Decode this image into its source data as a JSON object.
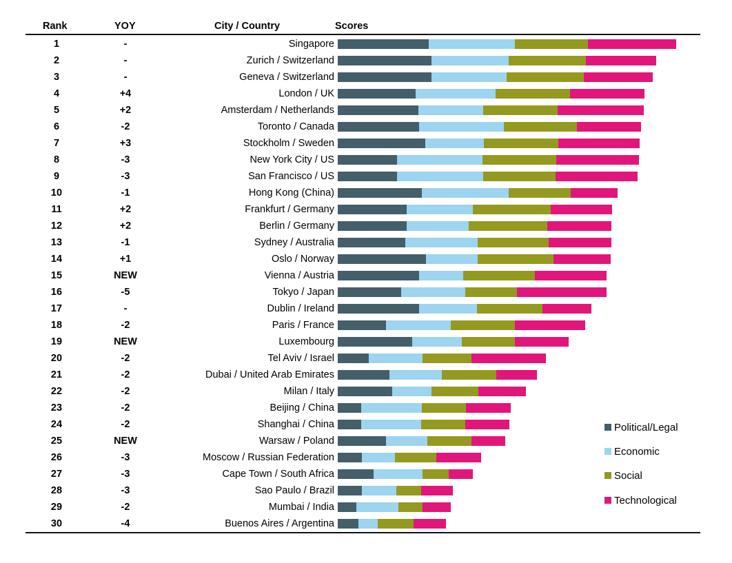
{
  "chart_data": {
    "type": "bar",
    "orientation": "horizontal",
    "stacked": true,
    "title": "",
    "value_note": "No numeric axis shown; values are relative scores normalized so Singapore's total = 100",
    "columns": {
      "rank": "Rank",
      "yoy": "YOY",
      "city": "City / Country",
      "scores": "Scores"
    },
    "series": [
      {
        "name": "Political/Legal",
        "color": "#445E6A"
      },
      {
        "name": "Economic",
        "color": "#9DD4EF"
      },
      {
        "name": "Social",
        "color": "#949A1F"
      },
      {
        "name": "Technological",
        "color": "#E2157A"
      }
    ],
    "legend_position": "bottom-right",
    "grid": false,
    "rows": [
      {
        "rank": "1",
        "yoy": "-",
        "city": "Singapore",
        "values": [
          26.9,
          25.5,
          21.6,
          26.1
        ]
      },
      {
        "rank": "2",
        "yoy": "-",
        "city": "Zurich / Switzerland",
        "values": [
          27.7,
          22.8,
          22.8,
          20.8
        ]
      },
      {
        "rank": "3",
        "yoy": "-",
        "city": "Geneva / Switzerland",
        "values": [
          27.7,
          22.2,
          22.8,
          20.4
        ]
      },
      {
        "rank": "4",
        "yoy": "+4",
        "city": "London / UK",
        "values": [
          23.0,
          23.6,
          22.0,
          22.0
        ]
      },
      {
        "rank": "5",
        "yoy": "+2",
        "city": "Amsterdam / Netherlands",
        "values": [
          23.8,
          19.1,
          22.0,
          25.5
        ]
      },
      {
        "rank": "6",
        "yoy": "-2",
        "city": "Toronto / Canada",
        "values": [
          24.0,
          25.1,
          21.6,
          18.9
        ]
      },
      {
        "rank": "7",
        "yoy": "+3",
        "city": "Stockholm / Sweden",
        "values": [
          25.9,
          17.3,
          22.0,
          24.0
        ]
      },
      {
        "rank": "8",
        "yoy": "-3",
        "city": "New York City / US",
        "values": [
          17.5,
          25.3,
          21.8,
          24.4
        ]
      },
      {
        "rank": "9",
        "yoy": "-3",
        "city": "San Francisco / US",
        "values": [
          17.5,
          25.5,
          21.4,
          24.2
        ]
      },
      {
        "rank": "10",
        "yoy": "-1",
        "city": "Hong Kong (China)",
        "values": [
          24.8,
          25.7,
          18.3,
          13.8
        ]
      },
      {
        "rank": "11",
        "yoy": "+2",
        "city": "Frankfurt / Germany",
        "values": [
          20.4,
          19.6,
          23.0,
          18.1
        ]
      },
      {
        "rank": "12",
        "yoy": "+2",
        "city": "Berlin / Germany",
        "values": [
          20.4,
          18.3,
          23.2,
          18.9
        ]
      },
      {
        "rank": "13",
        "yoy": "-1",
        "city": "Sydney / Australia",
        "values": [
          20.0,
          21.4,
          21.0,
          18.5
        ]
      },
      {
        "rank": "14",
        "yoy": "+1",
        "city": "Oslo / Norway",
        "values": [
          26.1,
          15.3,
          22.4,
          16.9
        ]
      },
      {
        "rank": "15",
        "yoy": "NEW",
        "city": "Vienna / Austria",
        "values": [
          24.0,
          13.0,
          21.2,
          21.2
        ]
      },
      {
        "rank": "16",
        "yoy": "-5",
        "city": "Tokyo / Japan",
        "values": [
          18.7,
          18.9,
          15.3,
          26.5
        ]
      },
      {
        "rank": "17",
        "yoy": "-",
        "city": "Dublin / Ireland",
        "values": [
          24.0,
          17.1,
          19.4,
          14.5
        ]
      },
      {
        "rank": "18",
        "yoy": "-2",
        "city": "Paris / France",
        "values": [
          14.3,
          19.1,
          18.9,
          20.8
        ]
      },
      {
        "rank": "19",
        "yoy": "NEW",
        "city": "Luxembourg",
        "values": [
          22.0,
          14.7,
          15.7,
          15.9
        ]
      },
      {
        "rank": "20",
        "yoy": "-2",
        "city": "Tel Aviv / Israel",
        "values": [
          9.2,
          15.9,
          14.5,
          22.0
        ]
      },
      {
        "rank": "21",
        "yoy": "-2",
        "city": "Dubai / United Arab Emirates",
        "values": [
          15.3,
          15.5,
          16.1,
          12.0
        ]
      },
      {
        "rank": "22",
        "yoy": "-2",
        "city": "Milan / Italy",
        "values": [
          16.1,
          11.6,
          13.8,
          14.1
        ]
      },
      {
        "rank": "23",
        "yoy": "-2",
        "city": "Beijing / China",
        "values": [
          6.9,
          17.9,
          13.0,
          13.4
        ]
      },
      {
        "rank": "24",
        "yoy": "-2",
        "city": "Shanghai / China",
        "values": [
          6.9,
          17.7,
          13.0,
          13.2
        ]
      },
      {
        "rank": "25",
        "yoy": "NEW",
        "city": "Warsaw / Poland",
        "values": [
          14.3,
          12.2,
          13.0,
          10.0
        ]
      },
      {
        "rank": "26",
        "yoy": "-3",
        "city": "Moscow / Russian Federation",
        "values": [
          7.1,
          9.8,
          12.2,
          13.2
        ]
      },
      {
        "rank": "27",
        "yoy": "-3",
        "city": "Cape Town / South Africa",
        "values": [
          10.6,
          14.5,
          7.7,
          7.1
        ]
      },
      {
        "rank": "28",
        "yoy": "-3",
        "city": "Sao Paulo / Brazil",
        "values": [
          7.1,
          10.2,
          7.3,
          9.4
        ]
      },
      {
        "rank": "29",
        "yoy": "-2",
        "city": "Mumbai / India",
        "values": [
          5.5,
          12.4,
          7.1,
          8.4
        ]
      },
      {
        "rank": "30",
        "yoy": "-4",
        "city": "Buenos Aires / Argentina",
        "values": [
          6.1,
          5.7,
          10.6,
          9.6
        ]
      }
    ]
  }
}
